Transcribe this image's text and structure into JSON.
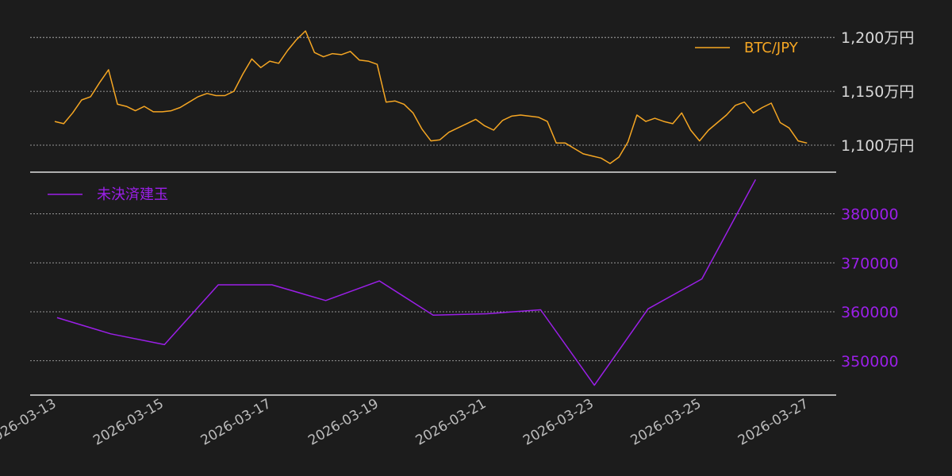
{
  "chart_data": [
    {
      "type": "line",
      "series": [
        {
          "name": "BTC/JPY",
          "color": "#f5a623",
          "x": [
            "2026-03-12T23:00",
            "2026-03-13T03:00",
            "2026-03-13T07:00",
            "2026-03-13T11:00",
            "2026-03-13T15:00",
            "2026-03-13T19:00",
            "2026-03-13T23:00",
            "2026-03-14T03:00",
            "2026-03-14T07:00",
            "2026-03-14T11:00",
            "2026-03-14T15:00",
            "2026-03-14T19:00",
            "2026-03-14T23:00",
            "2026-03-15T03:00",
            "2026-03-15T07:00",
            "2026-03-15T11:00",
            "2026-03-15T15:00",
            "2026-03-15T19:00",
            "2026-03-15T23:00",
            "2026-03-16T03:00",
            "2026-03-16T07:00",
            "2026-03-16T11:00",
            "2026-03-16T15:00",
            "2026-03-16T19:00",
            "2026-03-16T23:00",
            "2026-03-17T03:00",
            "2026-03-17T07:00",
            "2026-03-17T11:00",
            "2026-03-17T15:00",
            "2026-03-17T19:00",
            "2026-03-17T23:00",
            "2026-03-18T03:00",
            "2026-03-18T07:00",
            "2026-03-18T11:00",
            "2026-03-18T15:00",
            "2026-03-18T19:00",
            "2026-03-18T23:00",
            "2026-03-19T03:00",
            "2026-03-19T07:00",
            "2026-03-19T11:00",
            "2026-03-19T15:00",
            "2026-03-19T19:00",
            "2026-03-19T23:00",
            "2026-03-20T03:00",
            "2026-03-20T07:00",
            "2026-03-20T11:00",
            "2026-03-20T15:00",
            "2026-03-20T19:00",
            "2026-03-20T23:00",
            "2026-03-21T03:00",
            "2026-03-21T07:00",
            "2026-03-21T11:00",
            "2026-03-21T15:00",
            "2026-03-21T19:00",
            "2026-03-21T23:00",
            "2026-03-22T03:00",
            "2026-03-22T07:00",
            "2026-03-22T11:00",
            "2026-03-22T15:00",
            "2026-03-22T19:00",
            "2026-03-22T23:00",
            "2026-03-23T03:00",
            "2026-03-23T07:00",
            "2026-03-23T11:00",
            "2026-03-23T15:00",
            "2026-03-23T19:00",
            "2026-03-23T23:00",
            "2026-03-24T03:00",
            "2026-03-24T07:00",
            "2026-03-24T11:00",
            "2026-03-24T15:00",
            "2026-03-24T19:00",
            "2026-03-24T23:00",
            "2026-03-25T03:00",
            "2026-03-25T07:00",
            "2026-03-25T11:00",
            "2026-03-25T15:00",
            "2026-03-25T19:00",
            "2026-03-25T23:00",
            "2026-03-26T03:00",
            "2026-03-26T07:00",
            "2026-03-26T11:00",
            "2026-03-26T15:00",
            "2026-03-26T19:00",
            "2026-03-26T23:00"
          ],
          "values": [
            11220000,
            11200000,
            11300000,
            11420000,
            11450000,
            11580000,
            11700000,
            11380000,
            11360000,
            11320000,
            11360000,
            11310000,
            11310000,
            11320000,
            11350000,
            11400000,
            11450000,
            11480000,
            11460000,
            11460000,
            11500000,
            11660000,
            11800000,
            11720000,
            11780000,
            11760000,
            11880000,
            11980000,
            12060000,
            11860000,
            11820000,
            11850000,
            11840000,
            11870000,
            11790000,
            11780000,
            11750000,
            11400000,
            11410000,
            11380000,
            11300000,
            11150000,
            11040000,
            11050000,
            11120000,
            11160000,
            11200000,
            11240000,
            11180000,
            11140000,
            11230000,
            11270000,
            11280000,
            11270000,
            11260000,
            11220000,
            11020000,
            11020000,
            10970000,
            10920000,
            10900000,
            10880000,
            10830000,
            10890000,
            11030000,
            11280000,
            11220000,
            11250000,
            11220000,
            11200000,
            11300000,
            11140000,
            11040000,
            11140000,
            11210000,
            11280000,
            11370000,
            11400000,
            11300000,
            11350000,
            11390000,
            11210000,
            11160000,
            11040000,
            11020000
          ]
        }
      ],
      "yticks": [
        "1,100万円",
        "1,150万円",
        "1,200万円"
      ],
      "ylim": [
        10750000,
        12200000
      ],
      "grid": true,
      "legend": "top-right"
    },
    {
      "type": "line",
      "series": [
        {
          "name": "未決済建玉",
          "color": "#9b1fe8",
          "x": [
            "2026-03-13",
            "2026-03-14",
            "2026-03-15",
            "2026-03-16",
            "2026-03-17",
            "2026-03-18",
            "2026-03-19",
            "2026-03-20",
            "2026-03-21",
            "2026-03-22",
            "2026-03-23",
            "2026-03-24",
            "2026-03-25",
            "2026-03-26"
          ],
          "values": [
            358800,
            355500,
            353300,
            365500,
            365500,
            362300,
            366300,
            359300,
            359600,
            360400,
            345000,
            360600,
            366700,
            387000
          ]
        }
      ],
      "yticks": [
        "350000",
        "360000",
        "370000",
        "380000"
      ],
      "ylim": [
        343000,
        388500
      ],
      "grid": true,
      "legend": "top-left"
    }
  ],
  "xticks": [
    "2026-03-13",
    "2026-03-15",
    "2026-03-17",
    "2026-03-19",
    "2026-03-21",
    "2026-03-23",
    "2026-03-25",
    "2026-03-27"
  ],
  "xlim": [
    "2026-03-12T12:00",
    "2026-03-27T12:00"
  ]
}
